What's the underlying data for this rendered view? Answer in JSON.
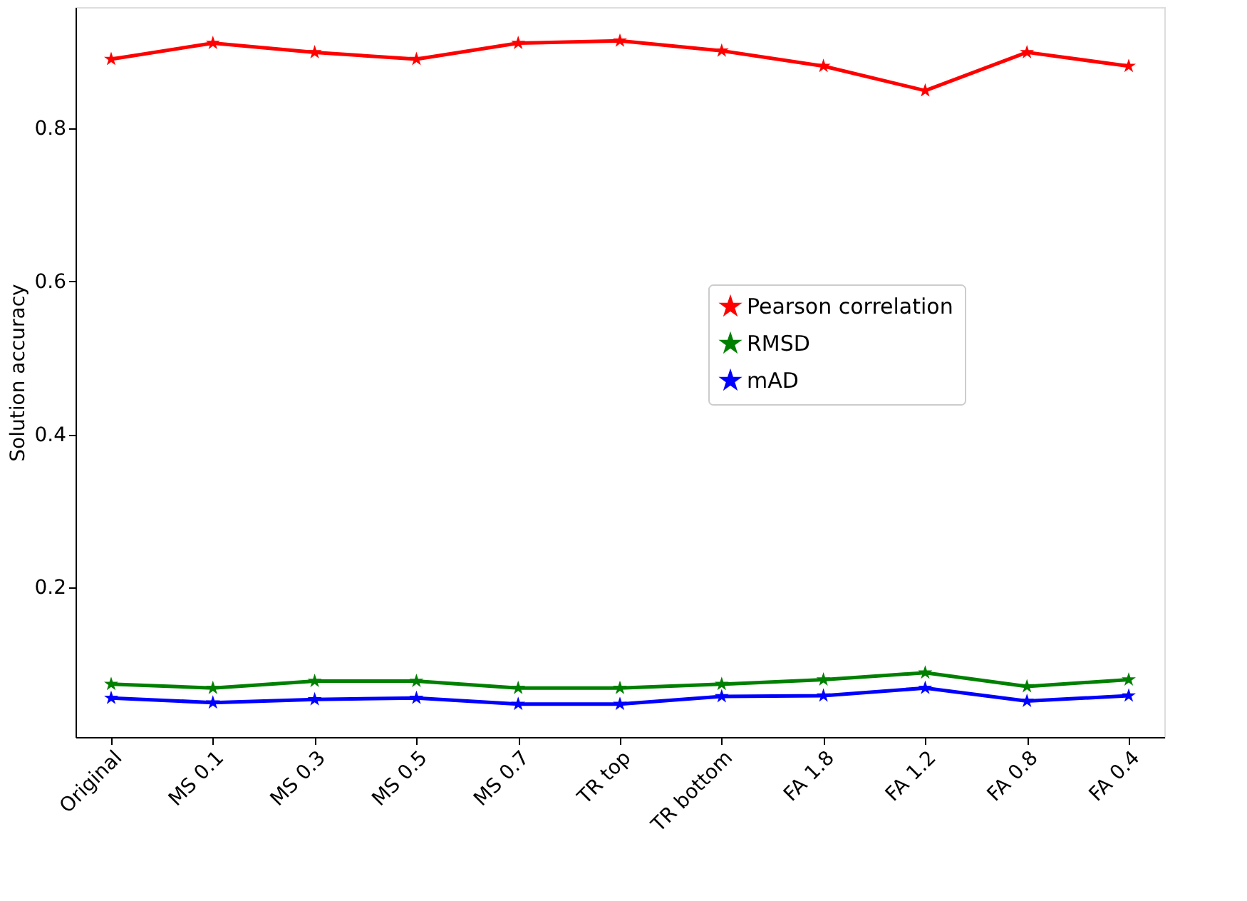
{
  "chart_data": {
    "type": "line",
    "ylabel": "Solution accuracy",
    "categories": [
      "Original",
      "MS 0.1",
      "MS 0.3",
      "MS 0.5",
      "MS 0.7",
      "TR top",
      "TR bottom",
      "FA 1.8",
      "FA 1.2",
      "FA 0.8",
      "FA 0.4"
    ],
    "series": [
      {
        "name": "Pearson correlation",
        "color": "#ff0000",
        "values": [
          0.89,
          0.911,
          0.899,
          0.89,
          0.911,
          0.914,
          0.901,
          0.881,
          0.849,
          0.899,
          0.881
        ]
      },
      {
        "name": "RMSD",
        "color": "#008000",
        "values": [
          0.074,
          0.069,
          0.078,
          0.078,
          0.069,
          0.069,
          0.074,
          0.08,
          0.089,
          0.071,
          0.08
        ]
      },
      {
        "name": "mAD",
        "color": "#0000ff",
        "values": [
          0.056,
          0.05,
          0.054,
          0.056,
          0.048,
          0.048,
          0.058,
          0.059,
          0.069,
          0.052,
          0.059
        ]
      }
    ],
    "ylim": [
      0.005,
      0.958
    ],
    "yticks": [
      0.2,
      0.4,
      0.6,
      0.8
    ],
    "grid": false,
    "legend": "right",
    "marker": "star",
    "line_style": "solid"
  }
}
